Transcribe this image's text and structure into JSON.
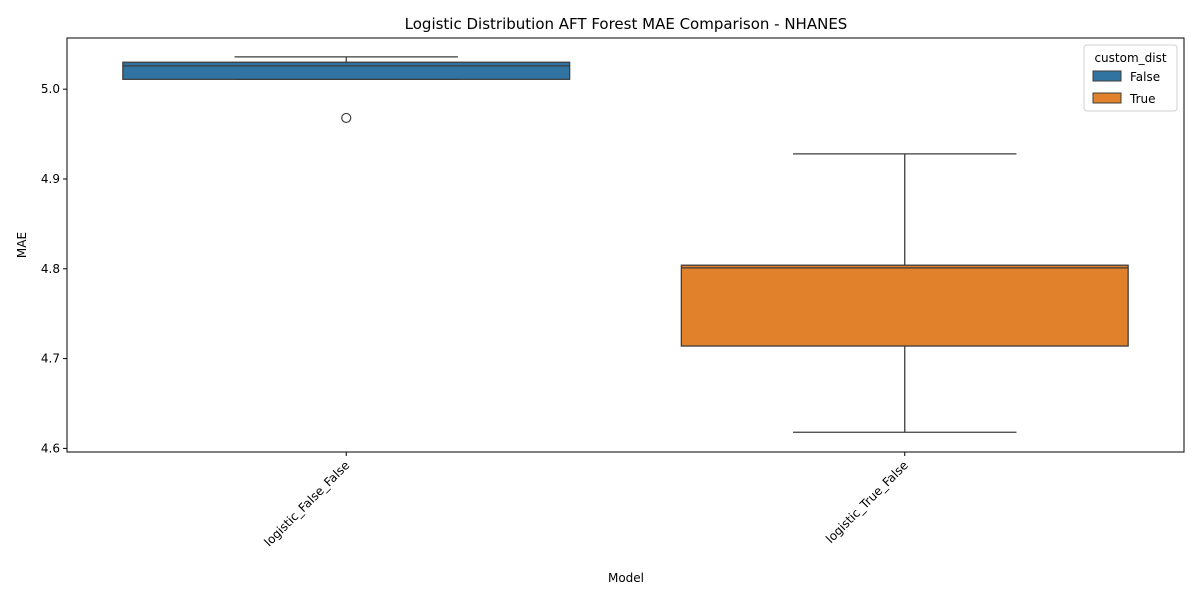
{
  "chart_data": {
    "type": "box",
    "title": "Logistic Distribution AFT Forest MAE Comparison - NHANES",
    "xlabel": "Model",
    "ylabel": "MAE",
    "ylim": [
      4.596,
      5.057
    ],
    "yticks": [
      "4.6",
      "4.7",
      "4.8",
      "4.9",
      "5.0"
    ],
    "categories": [
      "logistic_False_False",
      "logistic_True_False"
    ],
    "legend": {
      "title": "custom_dist",
      "placement": "top-right",
      "entries": [
        {
          "label": "False",
          "color": "#3274a1"
        },
        {
          "label": "True",
          "color": "#e1812c"
        }
      ]
    },
    "boxes": [
      {
        "category": "logistic_False_False",
        "group": "False",
        "color": "#3274a1",
        "whisker_low": 5.011,
        "q1": 5.011,
        "median": 5.026,
        "q3": 5.03,
        "whisker_high": 5.036,
        "outliers": [
          4.968
        ]
      },
      {
        "category": "logistic_True_False",
        "group": "True",
        "color": "#e1812c",
        "whisker_low": 4.618,
        "q1": 4.714,
        "median": 4.801,
        "q3": 4.804,
        "whisker_high": 4.928,
        "outliers": []
      }
    ]
  }
}
